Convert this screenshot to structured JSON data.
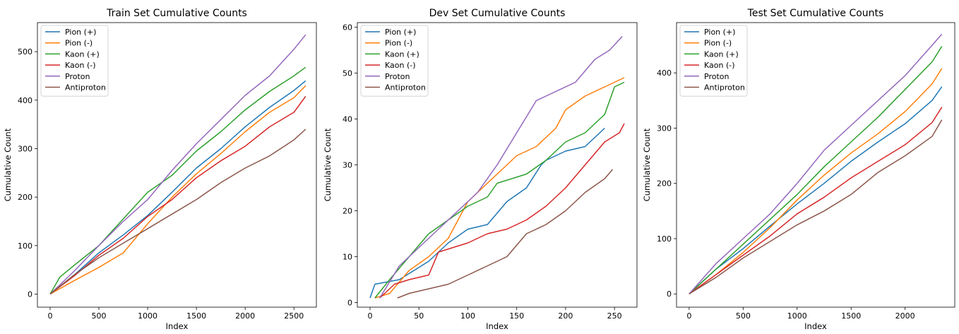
{
  "chart_data": [
    {
      "type": "line",
      "title": "Train Set Cumulative Counts",
      "xlabel": "Index",
      "ylabel": "Cumulative Count",
      "xlim": [
        -130,
        2730
      ],
      "ylim": [
        -27,
        560
      ],
      "xticks": [
        0,
        500,
        1000,
        1500,
        2000,
        2500
      ],
      "yticks": [
        0,
        100,
        200,
        300,
        400,
        500
      ],
      "legend": "top-left",
      "grid": false,
      "series": [
        {
          "name": "Pion (+)",
          "color": "#1f77b4",
          "x": [
            0,
            250,
            500,
            750,
            1000,
            1250,
            1500,
            1750,
            2000,
            2250,
            2500,
            2620
          ],
          "y": [
            0,
            40,
            85,
            122,
            162,
            210,
            260,
            300,
            345,
            385,
            420,
            440
          ]
        },
        {
          "name": "Pion (-)",
          "color": "#ff7f0e",
          "x": [
            0,
            250,
            500,
            750,
            1000,
            1250,
            1500,
            1750,
            2000,
            2250,
            2500,
            2620
          ],
          "y": [
            0,
            28,
            55,
            85,
            145,
            200,
            248,
            290,
            335,
            375,
            405,
            430
          ]
        },
        {
          "name": "Kaon (+)",
          "color": "#2ca02c",
          "x": [
            0,
            100,
            250,
            500,
            750,
            1000,
            1250,
            1500,
            1750,
            2000,
            2250,
            2500,
            2620
          ],
          "y": [
            0,
            35,
            60,
            100,
            155,
            210,
            245,
            295,
            335,
            380,
            418,
            450,
            468
          ]
        },
        {
          "name": "Kaon (-)",
          "color": "#d62728",
          "x": [
            0,
            250,
            500,
            750,
            1000,
            1250,
            1500,
            1750,
            2000,
            2250,
            2500,
            2620
          ],
          "y": [
            0,
            38,
            80,
            115,
            160,
            195,
            240,
            275,
            305,
            345,
            375,
            408
          ]
        },
        {
          "name": "Proton",
          "color": "#9467bd",
          "x": [
            0,
            250,
            500,
            750,
            1000,
            1250,
            1500,
            1750,
            2000,
            2250,
            2500,
            2620
          ],
          "y": [
            0,
            48,
            100,
            150,
            195,
            255,
            310,
            360,
            410,
            450,
            505,
            535
          ]
        },
        {
          "name": "Antiproton",
          "color": "#8c564b",
          "x": [
            0,
            250,
            500,
            750,
            1000,
            1250,
            1500,
            1750,
            2000,
            2250,
            2500,
            2620
          ],
          "y": [
            0,
            40,
            75,
            105,
            135,
            165,
            195,
            230,
            260,
            285,
            318,
            340
          ]
        }
      ]
    },
    {
      "type": "line",
      "title": "Dev Set Cumulative Counts",
      "xlabel": "Index",
      "ylabel": "Cumulative Count",
      "xlim": [
        -13,
        273
      ],
      "ylim": [
        -1,
        61
      ],
      "xticks": [
        0,
        50,
        100,
        150,
        200,
        250
      ],
      "yticks": [
        0,
        10,
        20,
        30,
        40,
        50,
        60
      ],
      "legend": "top-left",
      "grid": false,
      "series": [
        {
          "name": "Pion (+)",
          "color": "#1f77b4",
          "x": [
            0,
            5,
            30,
            60,
            80,
            100,
            120,
            140,
            160,
            175,
            180,
            200,
            220,
            240
          ],
          "y": [
            1,
            4,
            5,
            9,
            13,
            16,
            17,
            22,
            25,
            30,
            31,
            33,
            34,
            38
          ]
        },
        {
          "name": "Pion (-)",
          "color": "#ff7f0e",
          "x": [
            5,
            20,
            40,
            60,
            80,
            100,
            130,
            150,
            170,
            190,
            200,
            220,
            240,
            260
          ],
          "y": [
            1,
            2,
            7,
            10,
            14,
            22,
            28,
            32,
            34,
            38,
            42,
            45,
            47,
            49
          ]
        },
        {
          "name": "Kaon (+)",
          "color": "#2ca02c",
          "x": [
            5,
            20,
            40,
            60,
            80,
            100,
            120,
            130,
            160,
            180,
            200,
            220,
            240,
            250,
            260
          ],
          "y": [
            1,
            5,
            10,
            15,
            18,
            21,
            23,
            26,
            28,
            31,
            35,
            37,
            41,
            47,
            48
          ]
        },
        {
          "name": "Kaon (-)",
          "color": "#d62728",
          "x": [
            10,
            25,
            40,
            60,
            70,
            100,
            120,
            140,
            160,
            180,
            200,
            220,
            240,
            255,
            260
          ],
          "y": [
            1,
            4,
            5,
            6,
            11,
            13,
            15,
            16,
            18,
            21,
            25,
            30,
            35,
            37,
            39
          ]
        },
        {
          "name": "Proton",
          "color": "#9467bd",
          "x": [
            10,
            30,
            50,
            70,
            90,
            100,
            110,
            130,
            150,
            170,
            190,
            210,
            230,
            245,
            258
          ],
          "y": [
            1,
            8,
            12,
            16,
            20,
            22,
            24,
            30,
            37,
            44,
            46,
            48,
            53,
            55,
            58
          ]
        },
        {
          "name": "Antiproton",
          "color": "#8c564b",
          "x": [
            28,
            40,
            60,
            80,
            100,
            120,
            140,
            160,
            180,
            200,
            220,
            240,
            248
          ],
          "y": [
            1,
            2,
            3,
            4,
            6,
            8,
            10,
            15,
            17,
            20,
            24,
            27,
            29
          ]
        }
      ]
    },
    {
      "type": "line",
      "title": "Test Set Cumulative Counts",
      "xlabel": "Index",
      "ylabel": "Cumulative Count",
      "xlim": [
        -117,
        2460
      ],
      "ylim": [
        -24,
        491
      ],
      "xticks": [
        0,
        500,
        1000,
        1500,
        2000
      ],
      "yticks": [
        0,
        100,
        200,
        300,
        400
      ],
      "legend": "top-left",
      "grid": false,
      "series": [
        {
          "name": "Pion (+)",
          "color": "#1f77b4",
          "x": [
            0,
            250,
            500,
            750,
            1000,
            1250,
            1500,
            1750,
            2000,
            2250,
            2340
          ],
          "y": [
            0,
            45,
            82,
            123,
            163,
            200,
            240,
            275,
            308,
            350,
            375
          ]
        },
        {
          "name": "Pion (-)",
          "color": "#ff7f0e",
          "x": [
            0,
            250,
            500,
            750,
            1000,
            1250,
            1500,
            1750,
            2000,
            2250,
            2340
          ],
          "y": [
            0,
            35,
            75,
            120,
            170,
            215,
            255,
            290,
            330,
            380,
            408
          ]
        },
        {
          "name": "Kaon (+)",
          "color": "#2ca02c",
          "x": [
            0,
            250,
            500,
            750,
            1000,
            1250,
            1500,
            1750,
            2000,
            2250,
            2340
          ],
          "y": [
            0,
            45,
            90,
            135,
            180,
            230,
            275,
            320,
            370,
            420,
            448
          ]
        },
        {
          "name": "Kaon (-)",
          "color": "#d62728",
          "x": [
            0,
            250,
            500,
            750,
            1000,
            1250,
            1500,
            1750,
            2000,
            2250,
            2340
          ],
          "y": [
            0,
            35,
            70,
            105,
            145,
            175,
            210,
            240,
            270,
            310,
            338
          ]
        },
        {
          "name": "Proton",
          "color": "#9467bd",
          "x": [
            0,
            250,
            500,
            750,
            1000,
            1250,
            1500,
            1750,
            2000,
            2250,
            2340
          ],
          "y": [
            0,
            55,
            100,
            145,
            200,
            260,
            305,
            350,
            395,
            450,
            470
          ]
        },
        {
          "name": "Antiproton",
          "color": "#8c564b",
          "x": [
            0,
            250,
            500,
            750,
            1000,
            1250,
            1500,
            1750,
            2000,
            2250,
            2340
          ],
          "y": [
            0,
            30,
            65,
            95,
            125,
            150,
            180,
            220,
            250,
            285,
            315
          ]
        }
      ]
    }
  ]
}
